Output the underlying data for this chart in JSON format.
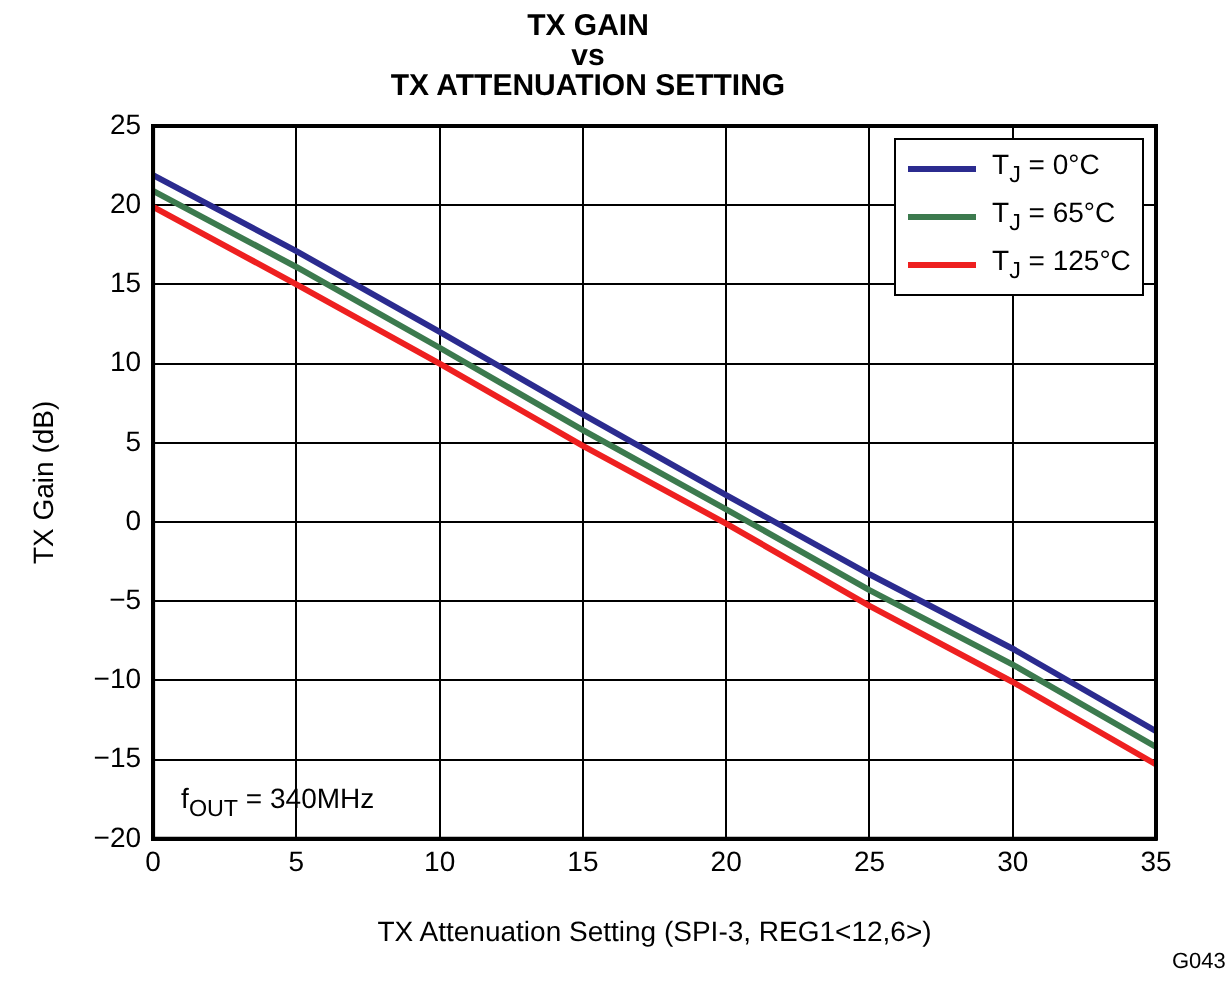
{
  "chart_data": {
    "type": "line",
    "title": "TX GAIN\nvs\nTX ATTENUATION SETTING",
    "xlabel": "TX Attenuation Setting (SPI-3, REG1<12,6>)",
    "ylabel": "TX Gain (dB)",
    "x": [
      0,
      5,
      10,
      15,
      20,
      25,
      30,
      35
    ],
    "series": [
      {
        "name": "T$_{J}$ = 0°C",
        "color": "#2b2b8f",
        "values": [
          21.9,
          17.1,
          12.0,
          6.8,
          1.7,
          -3.3,
          -8.0,
          -13.2
        ]
      },
      {
        "name": "T$_{J}$ = 65°C",
        "color": "#3c7a4e",
        "values": [
          20.9,
          16.1,
          11.0,
          5.8,
          0.8,
          -4.3,
          -9.0,
          -14.2
        ]
      },
      {
        "name": "T$_{J}$ = 125°C",
        "color": "#ee2020",
        "values": [
          19.9,
          15.0,
          10.0,
          4.8,
          -0.1,
          -5.3,
          -10.1,
          -15.3
        ]
      }
    ],
    "xlim": [
      0,
      35
    ],
    "xticks": [
      0,
      5,
      10,
      15,
      20,
      25,
      30,
      35
    ],
    "ylim": [
      -20,
      25
    ],
    "yticks": [
      -20,
      -15,
      -10,
      -5,
      0,
      5,
      10,
      15,
      20,
      25
    ],
    "grid": true,
    "legend": "top right",
    "marker": "none",
    "line_style": "solid",
    "annotations": [
      "f$_{OUT}$ = 340MHz",
      "G043"
    ]
  }
}
